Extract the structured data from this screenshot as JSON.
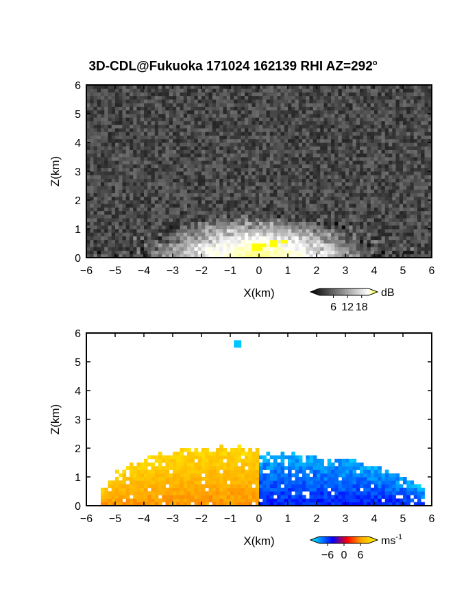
{
  "title": "3D-CDL@Fukuoka 171024 162139 RHI AZ=292",
  "title_degree": "o",
  "chart_data": [
    {
      "type": "heatmap",
      "panel": "reflectivity",
      "xlabel": "X(km)",
      "ylabel": "Z(km)",
      "xlim": [
        -6,
        6
      ],
      "ylim": [
        0,
        6
      ],
      "xticks": [
        "-6",
        "-5",
        "-4",
        "-3",
        "-2",
        "-1",
        "0",
        "1",
        "2",
        "3",
        "4",
        "5",
        "6"
      ],
      "yticks": [
        "0",
        "1",
        "2",
        "3",
        "4",
        "5",
        "6"
      ],
      "colorbar": {
        "unit": "dB",
        "ticks": [
          "6",
          "12",
          "18"
        ],
        "tick_values": [
          6,
          12,
          18
        ],
        "range": [
          0,
          21
        ],
        "colors": [
          "#000000",
          "#ffffff",
          "#ffff00"
        ]
      },
      "background_level_db": 3,
      "features": [
        {
          "name": "bright layer",
          "x_center": 0,
          "x_half_width": 4,
          "z_top": 1.5,
          "peak_db": 16
        },
        {
          "name": "saturated echo",
          "x": [
            -0.3,
            1.0
          ],
          "z": [
            0.2,
            0.6
          ],
          "value_db": 21
        }
      ]
    },
    {
      "type": "heatmap",
      "panel": "doppler velocity",
      "xlabel": "X(km)",
      "ylabel": "Z(km)",
      "xlim": [
        -6,
        6
      ],
      "ylim": [
        0,
        6
      ],
      "xticks": [
        "-6",
        "-5",
        "-4",
        "-3",
        "-2",
        "-1",
        "0",
        "1",
        "2",
        "3",
        "4",
        "5",
        "6"
      ],
      "yticks": [
        "0",
        "1",
        "2",
        "3",
        "4",
        "5",
        "6"
      ],
      "colorbar": {
        "unit": "ms",
        "unit_exponent": "-1",
        "ticks": [
          "-6",
          "0",
          "6"
        ],
        "tick_values": [
          -6,
          0,
          6
        ],
        "range": [
          -9,
          9
        ],
        "colors": [
          "#00ffff",
          "#0000ff",
          "#ff0000",
          "#ffa500",
          "#ffff00"
        ]
      },
      "features": [
        {
          "name": "positive velocity region",
          "x": [
            -5.5,
            0
          ],
          "z_top": 2.0,
          "value_ms": 4
        },
        {
          "name": "negative velocity region",
          "x": [
            0,
            5.8
          ],
          "z_top": 1.8,
          "value_ms": -5
        },
        {
          "name": "isolated echo",
          "x": -0.8,
          "z": 5.6,
          "value_ms": -8
        }
      ]
    }
  ]
}
